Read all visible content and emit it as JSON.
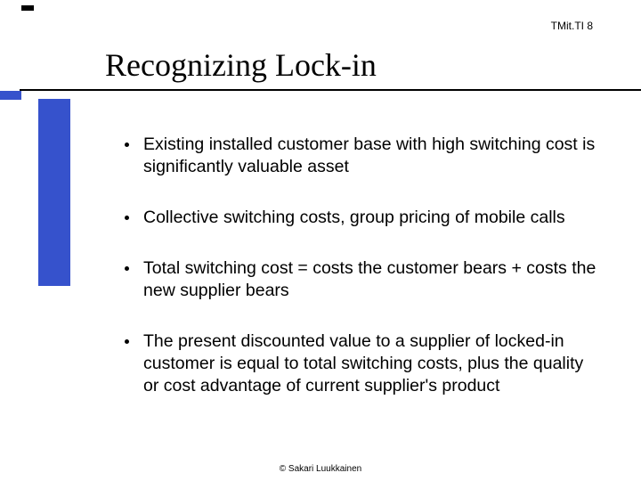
{
  "header": {
    "code": "TMit.TI 8"
  },
  "title": "Recognizing Lock-in",
  "bullets": [
    "Existing installed customer base with high switching cost is significantly valuable asset",
    "Collective switching costs, group pricing of mobile calls",
    "Total switching cost = costs the customer bears + costs the new supplier bears",
    "The present discounted value to a supplier of locked-in customer is equal to total switching costs, plus the quality or cost advantage of current supplier's product"
  ],
  "footer": "© Sakari Luukkainen",
  "styling": {
    "accent_color": "#3652cc",
    "background_color": "#ffffff",
    "text_color": "#000000",
    "title_font": "Times New Roman",
    "title_fontsize": 36,
    "body_font": "Arial",
    "body_fontsize": 19.5,
    "slide_width": 720,
    "slide_height": 540
  }
}
